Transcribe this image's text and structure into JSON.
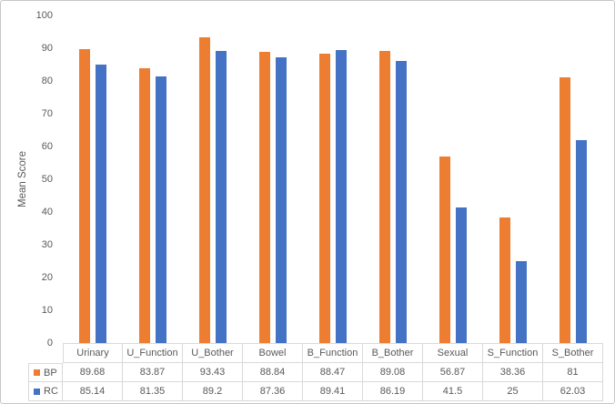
{
  "chart_data": {
    "type": "bar",
    "title": "",
    "xlabel": "",
    "ylabel": "Mean Score",
    "ylim": [
      0,
      100
    ],
    "yticks": [
      0,
      10,
      20,
      30,
      40,
      50,
      60,
      70,
      80,
      90,
      100
    ],
    "grid": false,
    "legend_position": "data-table-left",
    "categories": [
      "Urinary",
      "U_Function",
      "U_Bother",
      "Bowel",
      "B_Function",
      "B_Bother",
      "Sexual",
      "S_Function",
      "S_Bother"
    ],
    "series": [
      {
        "name": "BP",
        "color": "#ED7D31",
        "values": [
          89.68,
          83.87,
          93.43,
          88.84,
          88.47,
          89.08,
          56.87,
          38.36,
          81
        ]
      },
      {
        "name": "RC",
        "color": "#4472C4",
        "values": [
          85.14,
          81.35,
          89.2,
          87.36,
          89.41,
          86.19,
          41.5,
          25,
          62.03
        ]
      }
    ]
  },
  "colors": {
    "axis_text": "#595959",
    "table_border": "#D9D9D9",
    "figure_border": "#C7C7C7",
    "background": "#FFFFFF"
  }
}
